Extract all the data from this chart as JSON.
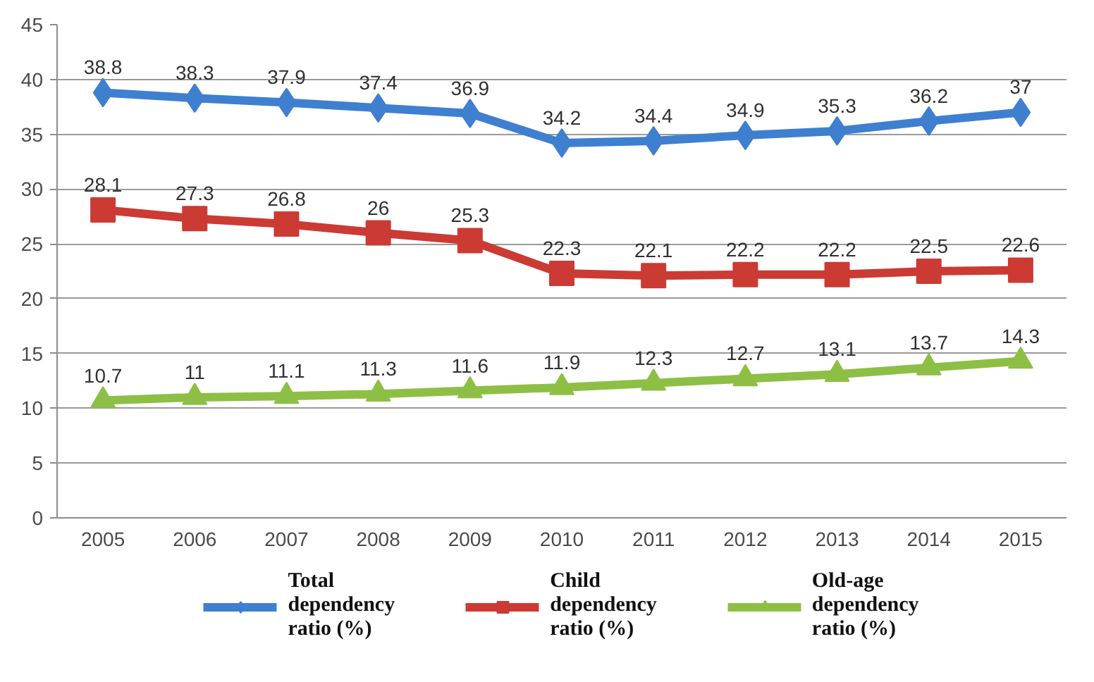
{
  "chart_data": {
    "type": "line",
    "categories": [
      "2005",
      "2006",
      "2007",
      "2008",
      "2009",
      "2010",
      "2011",
      "2012",
      "2013",
      "2014",
      "2015"
    ],
    "ylim": [
      0,
      45
    ],
    "yticks": [
      0,
      5,
      10,
      15,
      20,
      25,
      30,
      35,
      40,
      45
    ],
    "grid": "y",
    "legend": "bottom",
    "data_labels": true,
    "line_style": "solid",
    "series": [
      {
        "name": "Total dependency ratio (%)",
        "color": "#3f7fd0",
        "marker": "diamond",
        "values": [
          38.8,
          38.3,
          37.9,
          37.4,
          36.9,
          34.2,
          34.4,
          34.9,
          35.3,
          36.2,
          37
        ]
      },
      {
        "name": "Child dependency ratio (%)",
        "color": "#cc3a34",
        "marker": "square",
        "values": [
          28.1,
          27.3,
          26.8,
          26,
          25.3,
          22.3,
          22.1,
          22.2,
          22.2,
          22.5,
          22.6
        ]
      },
      {
        "name": "Old-age dependency ratio (%)",
        "color": "#8dbf45",
        "marker": "triangle",
        "values": [
          10.7,
          11,
          11.1,
          11.3,
          11.6,
          11.9,
          12.3,
          12.7,
          13.1,
          13.7,
          14.3
        ]
      }
    ]
  }
}
